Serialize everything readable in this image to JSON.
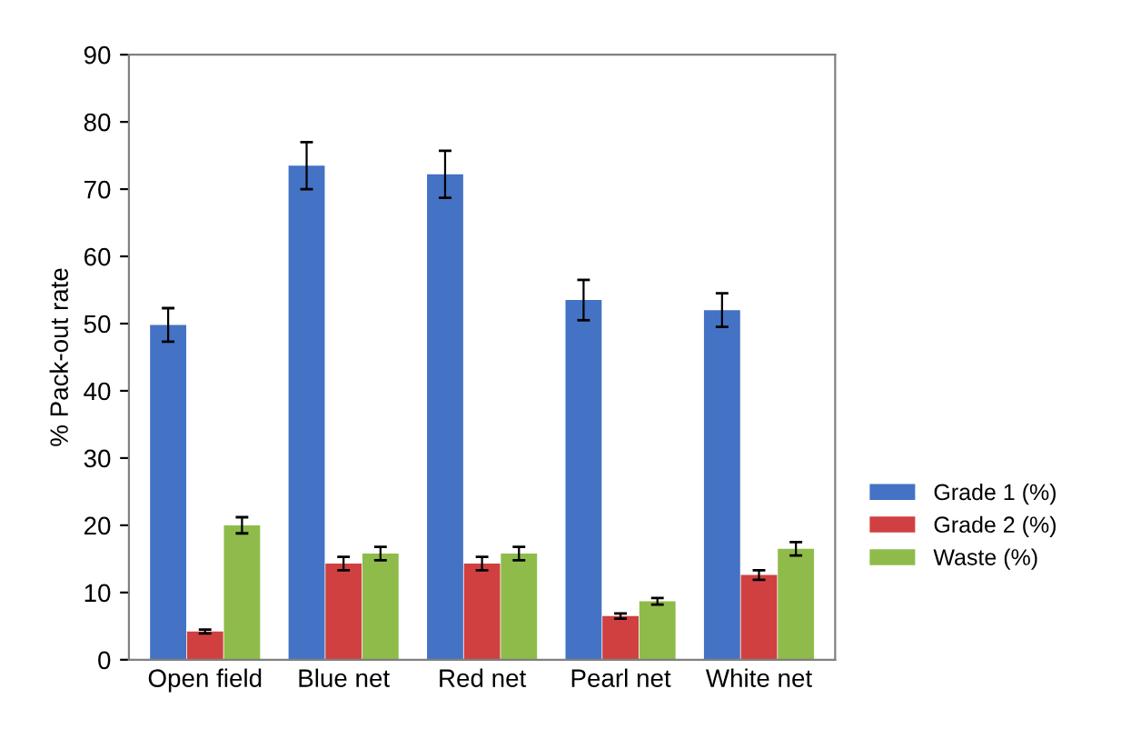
{
  "chart_data": {
    "type": "bar",
    "ylabel": "% Pack-out rate",
    "categories": [
      "Open field",
      "Blue net",
      "Red net",
      "Pearl net",
      "White net"
    ],
    "series": [
      {
        "name": "Grade 1 (%)",
        "color": "#4472c4",
        "values": [
          49.8,
          73.5,
          72.2,
          53.5,
          52
        ],
        "errors": [
          2.5,
          3.5,
          3.5,
          3,
          2.5
        ]
      },
      {
        "name": "Grade 2 (%)",
        "color": "#d04040",
        "values": [
          4.2,
          14.3,
          14.3,
          6.5,
          12.6
        ],
        "errors": [
          0.3,
          1,
          1,
          0.4,
          0.7
        ]
      },
      {
        "name": "Waste (%)",
        "color": "#8fbb4a",
        "values": [
          20,
          15.8,
          15.8,
          8.7,
          16.5
        ],
        "errors": [
          1.2,
          1,
          1,
          0.5,
          1
        ]
      }
    ],
    "ylim": [
      0,
      90
    ],
    "yticks": [
      0,
      10,
      20,
      30,
      40,
      50,
      60,
      70,
      80,
      90
    ],
    "grid": false,
    "legend": "right"
  }
}
